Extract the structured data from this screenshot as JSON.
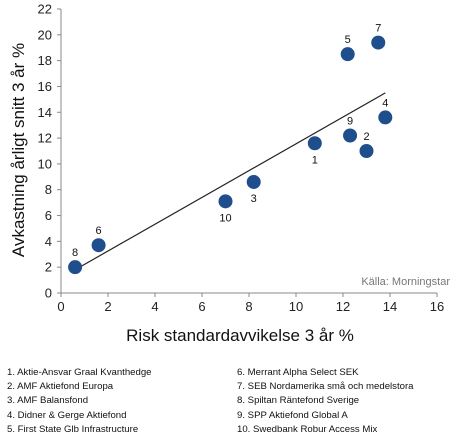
{
  "chart_data": {
    "type": "scatter",
    "title": "",
    "xlabel": "Risk standardavvikelse 3 år %",
    "ylabel": "Avkastning årligt snitt 3 år %",
    "xlim": [
      0,
      16
    ],
    "ylim": [
      0,
      22
    ],
    "xticks": [
      0,
      2,
      4,
      6,
      8,
      10,
      12,
      14,
      16
    ],
    "yticks": [
      0,
      2,
      4,
      6,
      8,
      10,
      12,
      14,
      16,
      18,
      20,
      22
    ],
    "grid": false,
    "points": [
      {
        "label": "1",
        "x": 10.8,
        "y": 11.6
      },
      {
        "label": "2",
        "x": 13.0,
        "y": 11.0
      },
      {
        "label": "3",
        "x": 8.2,
        "y": 8.6
      },
      {
        "label": "4",
        "x": 13.8,
        "y": 13.6
      },
      {
        "label": "5",
        "x": 12.2,
        "y": 18.5
      },
      {
        "label": "6",
        "x": 1.6,
        "y": 3.7
      },
      {
        "label": "7",
        "x": 13.5,
        "y": 19.4
      },
      {
        "label": "8",
        "x": 0.6,
        "y": 2.0
      },
      {
        "label": "9",
        "x": 12.3,
        "y": 12.2
      },
      {
        "label": "10",
        "x": 7.0,
        "y": 7.1
      }
    ],
    "trendline": {
      "x": [
        0.6,
        13.8
      ],
      "y": [
        1.8,
        15.5
      ]
    },
    "marker_color": "#1f4e8c",
    "source_note": "Källa: Morningstar",
    "legend": [
      "1. Aktie-Ansvar Graal Kvanthedge",
      "2. AMF Aktiefond Europa",
      "3. AMF Balansfond",
      "4. Didner & Gerge Aktiefond",
      "5. First State Glb Infrastructure",
      "6. Merrant Alpha Select SEK",
      "7. SEB Nordamerika små och medelstora",
      "8. Spiltan Räntefond Sverige",
      "9. SPP Aktiefond Global A",
      "10. Swedbank Robur Access Mix"
    ]
  }
}
